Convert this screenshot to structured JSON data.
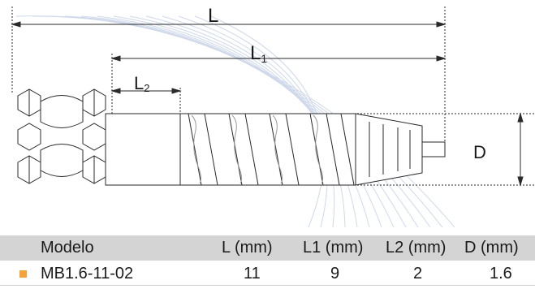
{
  "diagram": {
    "labels": {
      "L": "L",
      "L1_main": "L",
      "L1_sub": "1",
      "L2_main": "L",
      "L2_sub": "2",
      "D": "D"
    },
    "colors": {
      "line": "#2a2a2a",
      "fill": "#ffffff",
      "arc": "#c9d3e6"
    }
  },
  "table": {
    "headers": [
      "Modelo",
      "L (mm)",
      "L1 (mm)",
      "L2 (mm)",
      "D (mm)"
    ],
    "rows": [
      {
        "bullet_color": "#f4a23a",
        "cells": [
          "MB1.6-11-02",
          "11",
          "9",
          "2",
          "1.6"
        ]
      }
    ],
    "header_bg": "#d4d4d4"
  }
}
